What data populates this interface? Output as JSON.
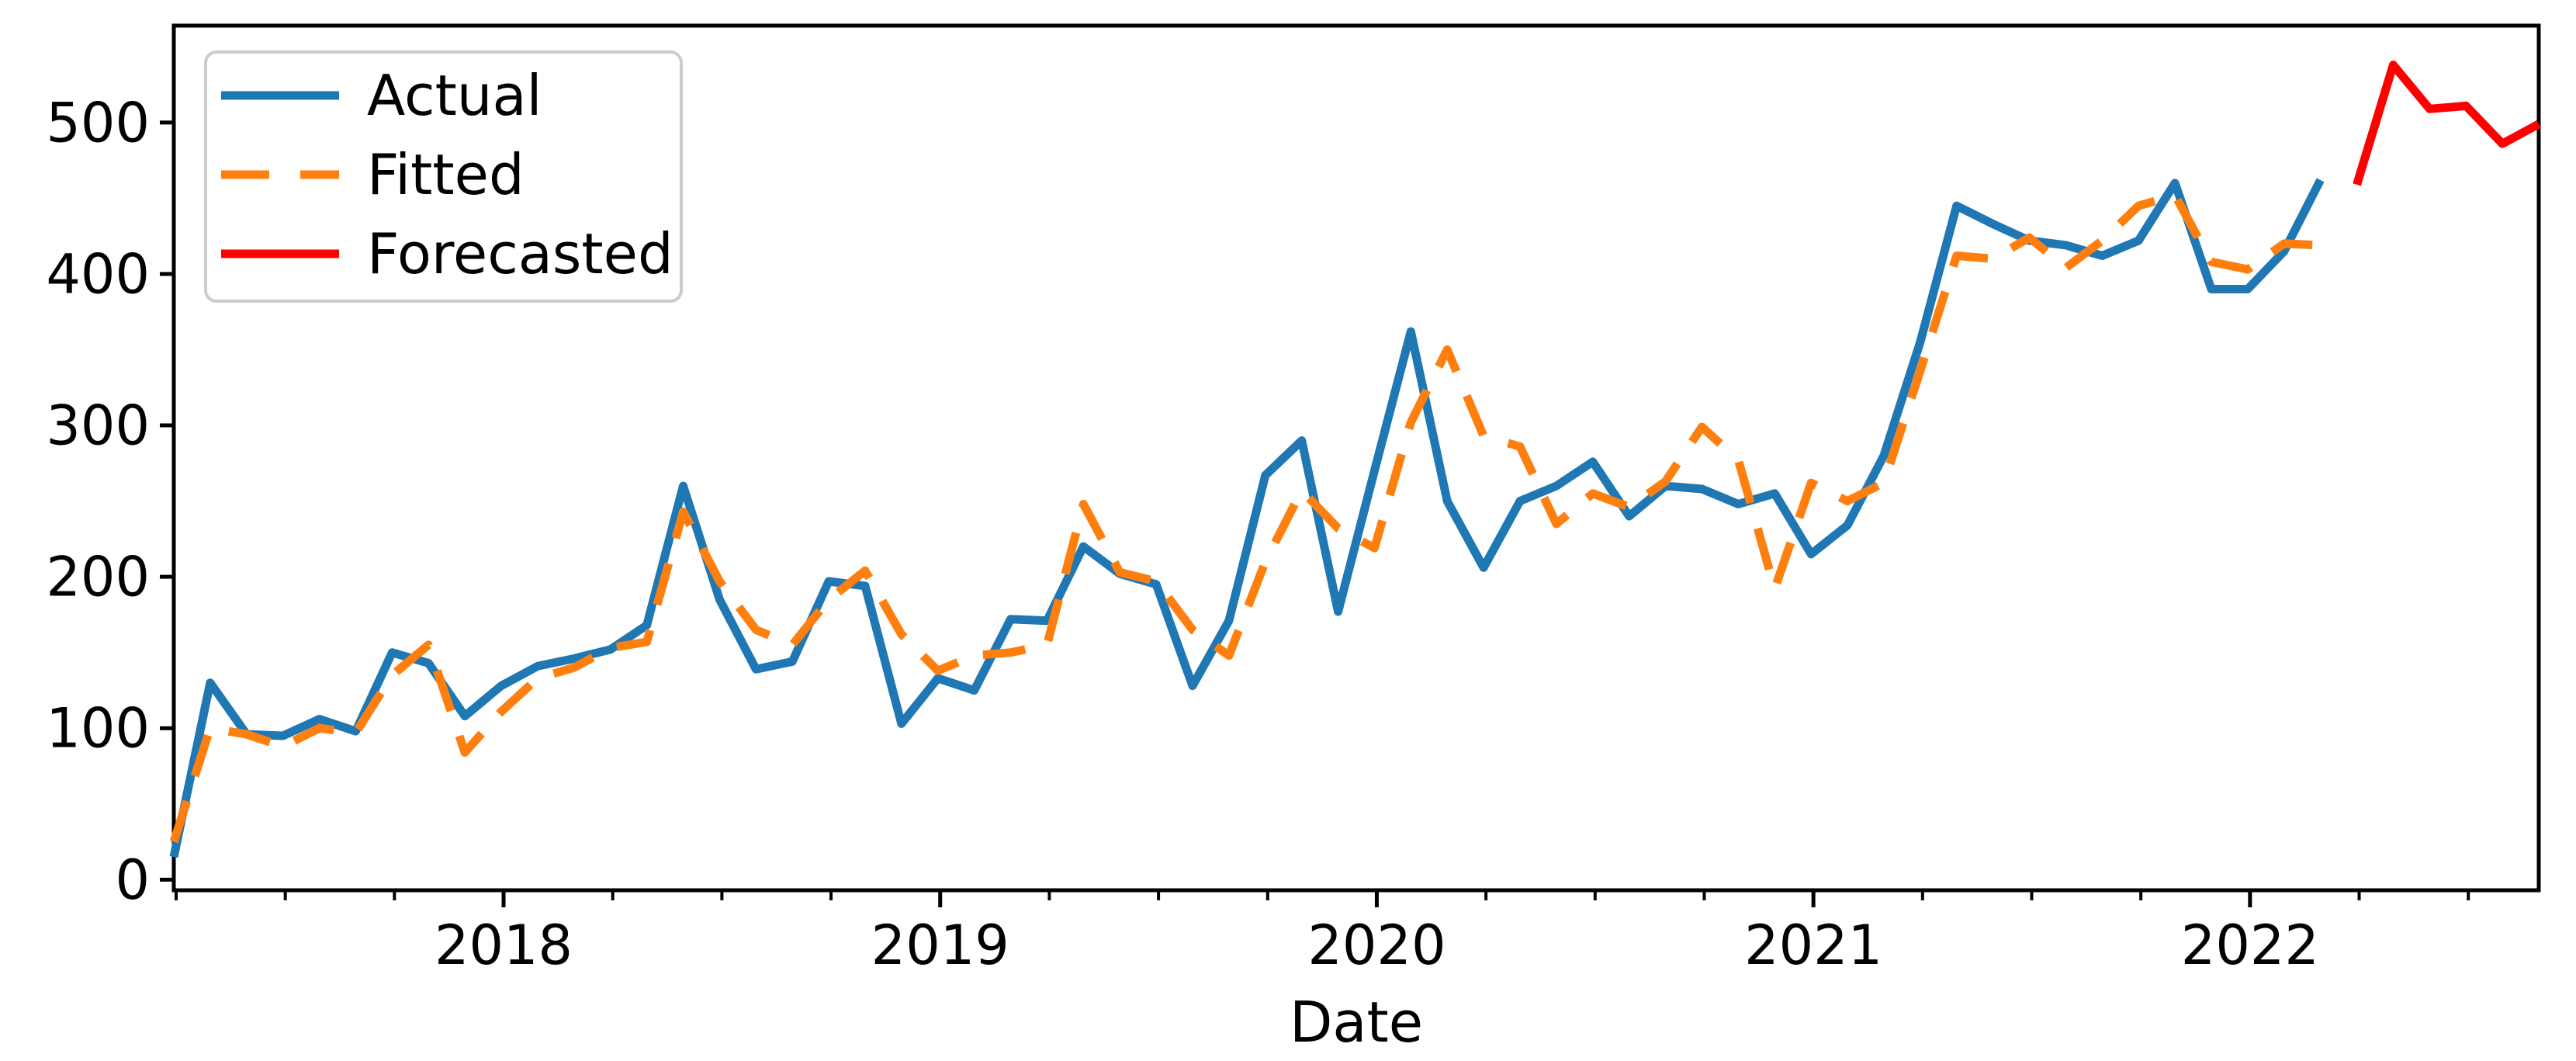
{
  "figure": {
    "background": "#ffffff",
    "axis_color": "#000000"
  },
  "chart_data": {
    "type": "line",
    "title": "",
    "xlabel": "Date",
    "ylabel": "",
    "grid": false,
    "legend_position": "upper left",
    "x_monthly": [
      "2017-03",
      "2017-04",
      "2017-05",
      "2017-06",
      "2017-07",
      "2017-08",
      "2017-09",
      "2017-10",
      "2017-11",
      "2017-12",
      "2018-01",
      "2018-02",
      "2018-03",
      "2018-04",
      "2018-05",
      "2018-06",
      "2018-07",
      "2018-08",
      "2018-09",
      "2018-10",
      "2018-11",
      "2018-12",
      "2019-01",
      "2019-02",
      "2019-03",
      "2019-04",
      "2019-05",
      "2019-06",
      "2019-07",
      "2019-08",
      "2019-09",
      "2019-10",
      "2019-11",
      "2019-12",
      "2020-01",
      "2020-02",
      "2020-03",
      "2020-04",
      "2020-05",
      "2020-06",
      "2020-07",
      "2020-08",
      "2020-09",
      "2020-10",
      "2020-11",
      "2020-12",
      "2021-01",
      "2021-02",
      "2021-03",
      "2021-04",
      "2021-05",
      "2021-06",
      "2021-07",
      "2021-08",
      "2021-09",
      "2021-10",
      "2021-11",
      "2021-12",
      "2022-01",
      "2022-02",
      "2022-03",
      "2022-04",
      "2022-05",
      "2022-06",
      "2022-07",
      "2022-08"
    ],
    "series": [
      {
        "name": "Actual",
        "color": "#1f77b4",
        "line_style": "solid",
        "start_index": 0,
        "values": [
          15,
          130,
          96,
          95,
          106,
          98,
          150,
          143,
          108,
          128,
          141,
          146,
          152,
          168,
          260,
          185,
          139,
          144,
          197,
          194,
          103,
          133,
          125,
          172,
          171,
          220,
          202,
          195,
          128,
          171,
          267,
          290,
          177,
          270,
          362,
          250,
          206,
          250,
          260,
          276,
          240,
          260,
          258,
          248,
          255,
          215,
          234,
          280,
          355,
          445,
          433,
          422,
          419,
          412,
          422,
          460,
          390,
          390,
          415,
          462
        ]
      },
      {
        "name": "Fitted",
        "color": "#ff7f0e",
        "line_style": "dashed",
        "start_index": 0,
        "values": [
          25,
          100,
          96,
          88,
          100,
          97,
          135,
          155,
          84,
          111,
          133,
          140,
          153,
          157,
          243,
          197,
          165,
          155,
          185,
          204,
          162,
          138,
          148,
          150,
          155,
          248,
          203,
          197,
          165,
          148,
          210,
          257,
          232,
          219,
          302,
          350,
          293,
          286,
          235,
          255,
          246,
          263,
          299,
          277,
          192,
          262,
          250,
          262,
          336,
          412,
          410,
          424,
          404,
          422,
          445,
          452,
          408,
          403,
          420,
          419
        ]
      },
      {
        "name": "Forecasted",
        "color": "#ff0000",
        "line_style": "solid",
        "start_index": 60,
        "values": [
          459,
          538,
          509,
          511,
          486,
          499
        ]
      }
    ],
    "ylim": [
      -7,
      564
    ],
    "yticks": {
      "values": [
        0,
        100,
        200,
        300,
        400,
        500
      ],
      "labels": [
        "0",
        "100",
        "200",
        "300",
        "400",
        "500"
      ]
    },
    "xticks_major": [
      {
        "label": "2018",
        "month_index": 9
      },
      {
        "label": "2019",
        "month_index": 21
      },
      {
        "label": "2020",
        "month_index": 33
      },
      {
        "label": "2021",
        "month_index": 45
      },
      {
        "label": "2022",
        "month_index": 57
      }
    ],
    "xticks_minor_month_indices": [
      0,
      3,
      6,
      12,
      15,
      18,
      24,
      27,
      30,
      36,
      39,
      42,
      48,
      51,
      54,
      60,
      63
    ],
    "legend": {
      "entries": [
        {
          "label": "Actual",
          "color": "#1f77b4",
          "line_style": "solid"
        },
        {
          "label": "Fitted",
          "color": "#ff7f0e",
          "line_style": "dashed"
        },
        {
          "label": "Forecasted",
          "color": "#ff0000",
          "line_style": "solid"
        }
      ]
    }
  }
}
